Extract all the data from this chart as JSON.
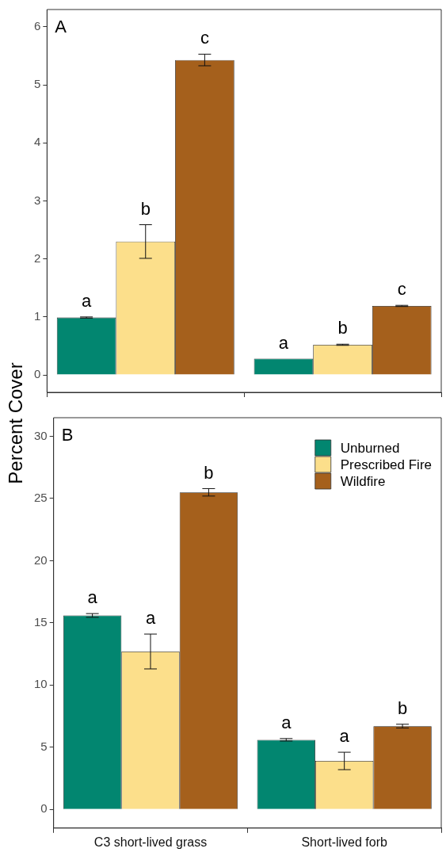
{
  "chart_data": [
    {
      "type": "bar",
      "ylabel": "Percent Cover",
      "annotations": [
        "A"
      ],
      "categories": [
        null,
        null
      ],
      "tick_labels": "y",
      "ylim": [
        -0.3,
        6.3
      ],
      "yticks": [
        0,
        1,
        2,
        3,
        4,
        5,
        6
      ],
      "grid": false,
      "legend": false,
      "series": [
        {
          "color": "#028670",
          "values": [
            0.99,
            0.28
          ],
          "errors": [
            0.01,
            null
          ],
          "value_labels": [
            "a",
            "a"
          ]
        },
        {
          "color": "#fcdf8b",
          "values": [
            2.3,
            0.52
          ],
          "errors": [
            0.29,
            0.01
          ],
          "value_labels": [
            "b",
            "b"
          ]
        },
        {
          "color": "#a5601c",
          "values": [
            5.43,
            1.19
          ],
          "errors": [
            0.1,
            0.01
          ],
          "value_labels": [
            "c",
            "c"
          ]
        }
      ]
    },
    {
      "type": "bar",
      "annotations": [
        "B"
      ],
      "categories": [
        "C3 short-lived grass",
        "Short-lived forb"
      ],
      "ylim": [
        -1.5,
        31.5
      ],
      "yticks": [
        0,
        5,
        10,
        15,
        20,
        25,
        30
      ],
      "grid": false,
      "legend": "top right",
      "series": [
        {
          "name": "Unburned",
          "color": "#028670",
          "values": [
            15.6,
            5.6
          ],
          "errors": [
            0.15,
            0.1
          ],
          "value_labels": [
            "a",
            "a"
          ]
        },
        {
          "name": "Prescribed Fire",
          "color": "#fcdf8b",
          "values": [
            12.7,
            3.9
          ],
          "errors": [
            1.4,
            0.7
          ],
          "value_labels": [
            "a",
            "a"
          ]
        },
        {
          "name": "Wildfire",
          "color": "#a5601c",
          "values": [
            25.5,
            6.7
          ],
          "errors": [
            0.3,
            0.15
          ],
          "value_labels": [
            "b",
            "b"
          ]
        }
      ]
    }
  ]
}
